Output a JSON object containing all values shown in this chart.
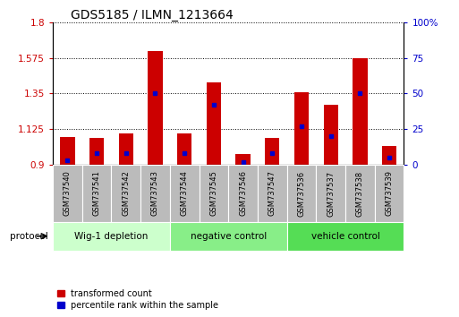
{
  "title": "GDS5185 / ILMN_1213664",
  "categories": [
    "GSM737540",
    "GSM737541",
    "GSM737542",
    "GSM737543",
    "GSM737544",
    "GSM737545",
    "GSM737546",
    "GSM737547",
    "GSM737536",
    "GSM737537",
    "GSM737538",
    "GSM737539"
  ],
  "red_values": [
    1.075,
    1.07,
    1.1,
    1.62,
    1.1,
    1.42,
    0.97,
    1.07,
    1.36,
    1.28,
    1.57,
    1.02
  ],
  "blue_values_pct": [
    3,
    8,
    8,
    50,
    8,
    42,
    2,
    8,
    27,
    20,
    50,
    5
  ],
  "groups": [
    {
      "label": "Wig-1 depletion",
      "start": 0,
      "end": 3,
      "color": "#ccffcc"
    },
    {
      "label": "negative control",
      "start": 4,
      "end": 7,
      "color": "#88ee88"
    },
    {
      "label": "vehicle control",
      "start": 8,
      "end": 11,
      "color": "#55dd55"
    }
  ],
  "ylim_left": [
    0.9,
    1.8
  ],
  "ylim_right": [
    0,
    100
  ],
  "yticks_left": [
    0.9,
    1.125,
    1.35,
    1.575,
    1.8
  ],
  "ytick_labels_left": [
    "0.9",
    "1.125",
    "1.35",
    "1.575",
    "1.8"
  ],
  "yticks_right": [
    0,
    25,
    50,
    75,
    100
  ],
  "ytick_labels_right": [
    "0",
    "25",
    "50",
    "75",
    "100%"
  ],
  "red_color": "#cc0000",
  "blue_color": "#0000cc",
  "legend_red": "transformed count",
  "legend_blue": "percentile rank within the sample",
  "protocol_label": "protocol",
  "label_bg": "#bbbbbb",
  "bar_width": 0.5
}
